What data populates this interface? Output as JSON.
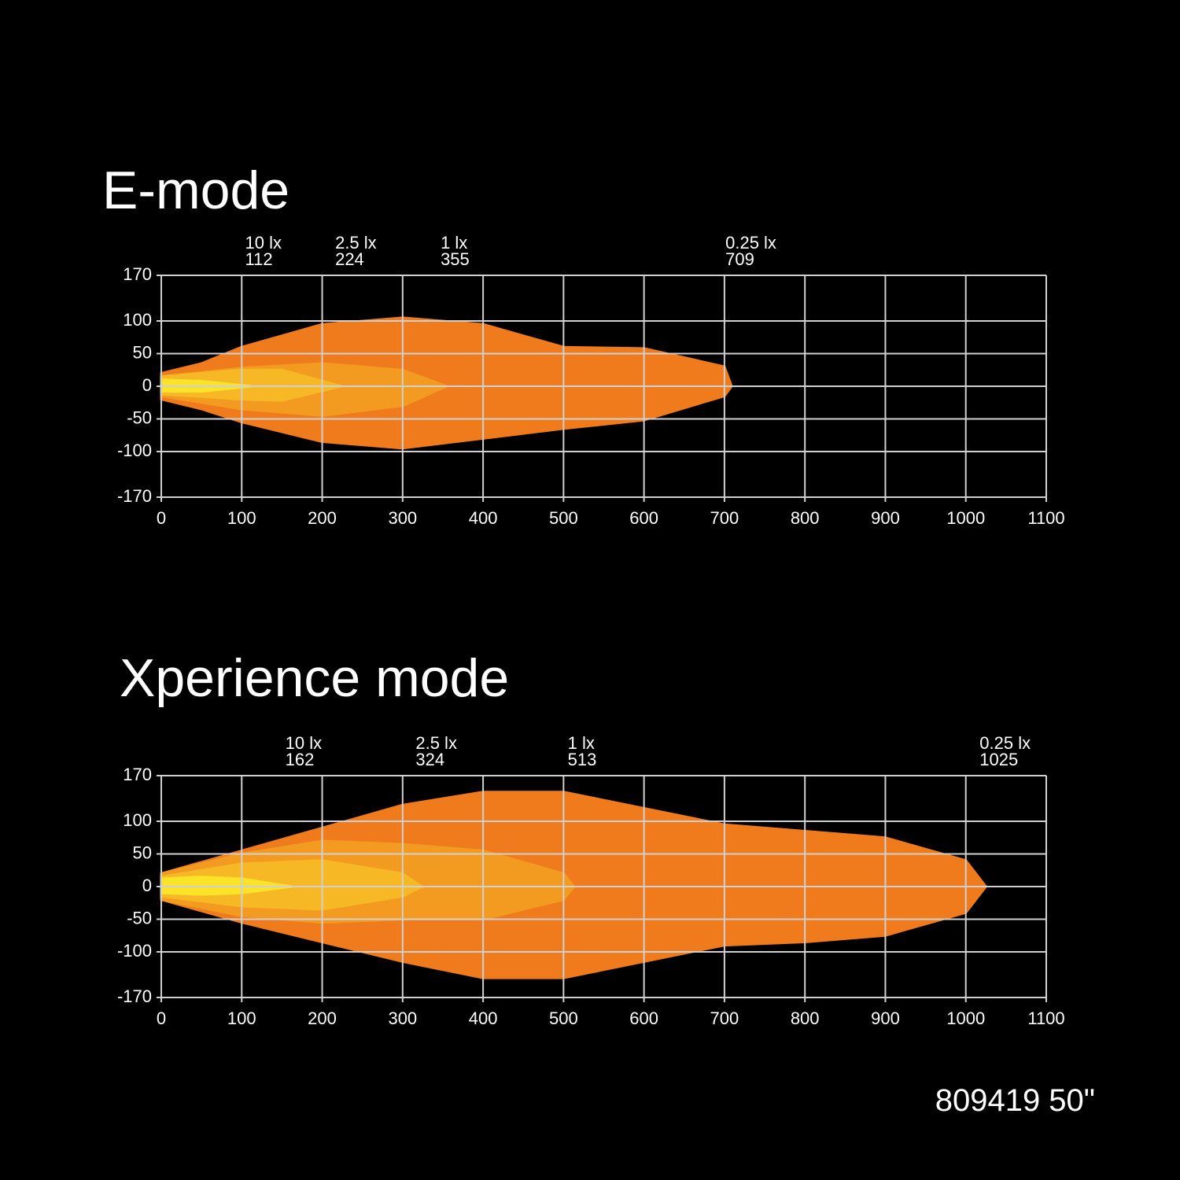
{
  "chart_data": [
    {
      "type": "isolux",
      "title": "E-mode",
      "xlim": [
        0,
        1100
      ],
      "ylim": [
        -170,
        170
      ],
      "xticks": [
        0,
        100,
        200,
        300,
        400,
        500,
        600,
        700,
        800,
        900,
        1000,
        1100
      ],
      "yticks": [
        170,
        100,
        50,
        0,
        -50,
        -100,
        -170
      ],
      "grid": true,
      "series": [
        {
          "name": "0.25 lx",
          "reach": 709,
          "color": "#ef7b1d",
          "x": [
            0,
            50,
            100,
            200,
            300,
            400,
            500,
            600,
            700,
            709
          ],
          "upper": [
            20,
            35,
            60,
            95,
            105,
            95,
            60,
            58,
            30,
            0
          ],
          "lower": [
            -20,
            -35,
            -55,
            -85,
            -95,
            -80,
            -65,
            -52,
            -15,
            0
          ]
        },
        {
          "name": "1 lx",
          "reach": 355,
          "color": "#f39a20",
          "x": [
            0,
            100,
            200,
            300,
            355
          ],
          "upper": [
            15,
            28,
            35,
            25,
            0
          ],
          "lower": [
            -15,
            -35,
            -45,
            -30,
            0
          ]
        },
        {
          "name": "2.5 lx",
          "reach": 224,
          "color": "#f7b826",
          "x": [
            0,
            100,
            150,
            224
          ],
          "upper": [
            15,
            25,
            25,
            0
          ],
          "lower": [
            -12,
            -20,
            -22,
            0
          ]
        },
        {
          "name": "10 lx",
          "reach": 112,
          "color": "#fbe32a",
          "x": [
            0,
            50,
            112
          ],
          "upper": [
            10,
            8,
            0
          ],
          "lower": [
            -8,
            -8,
            0
          ]
        }
      ]
    },
    {
      "type": "isolux",
      "title": "Xperience mode",
      "xlim": [
        0,
        1100
      ],
      "ylim": [
        -170,
        170
      ],
      "xticks": [
        0,
        100,
        200,
        300,
        400,
        500,
        600,
        700,
        800,
        900,
        1000,
        1100
      ],
      "yticks": [
        170,
        100,
        50,
        0,
        -50,
        -100,
        -170
      ],
      "grid": true,
      "series": [
        {
          "name": "0.25 lx",
          "reach": 1025,
          "color": "#ef7b1d",
          "x": [
            0,
            100,
            200,
            300,
            400,
            500,
            600,
            700,
            800,
            900,
            1000,
            1025
          ],
          "upper": [
            20,
            55,
            90,
            125,
            145,
            145,
            120,
            95,
            85,
            75,
            40,
            0
          ],
          "lower": [
            -20,
            -55,
            -85,
            -115,
            -140,
            -140,
            -115,
            -90,
            -85,
            -75,
            -40,
            0
          ]
        },
        {
          "name": "1 lx",
          "reach": 513,
          "color": "#f39a20",
          "x": [
            0,
            100,
            200,
            300,
            400,
            500,
            513
          ],
          "upper": [
            20,
            50,
            70,
            65,
            55,
            20,
            0
          ],
          "lower": [
            -20,
            -45,
            -55,
            -50,
            -50,
            -20,
            0
          ]
        },
        {
          "name": "2.5 lx",
          "reach": 324,
          "color": "#f7b826",
          "x": [
            0,
            100,
            200,
            300,
            324
          ],
          "upper": [
            15,
            35,
            40,
            20,
            0
          ],
          "lower": [
            -15,
            -30,
            -35,
            -15,
            0
          ]
        },
        {
          "name": "10 lx",
          "reach": 162,
          "color": "#fbe32a",
          "x": [
            0,
            50,
            100,
            162
          ],
          "upper": [
            12,
            15,
            12,
            0
          ],
          "lower": [
            -10,
            -12,
            -10,
            0
          ]
        }
      ]
    }
  ],
  "footer": "809419 50\""
}
